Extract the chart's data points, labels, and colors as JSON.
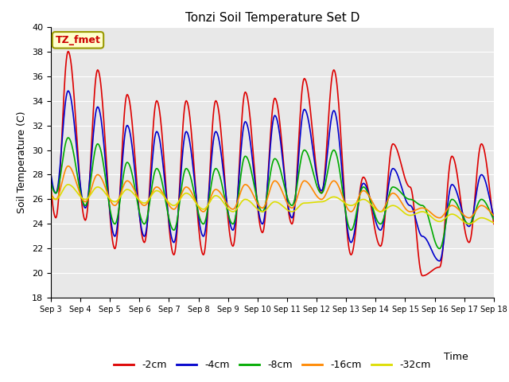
{
  "title": "Tonzi Soil Temperature Set D",
  "xlabel": "Time",
  "ylabel": "Soil Temperature (C)",
  "ylim": [
    18,
    40
  ],
  "annotation_label": "TZ_fmet",
  "background_color": "#e8e8e8",
  "legend_labels": [
    "-2cm",
    "-4cm",
    "-8cm",
    "-16cm",
    "-32cm"
  ],
  "line_colors": [
    "#dd0000",
    "#0000cc",
    "#00aa00",
    "#ff8800",
    "#dddd00"
  ],
  "line_widths": [
    1.2,
    1.2,
    1.2,
    1.2,
    1.2
  ],
  "x_tick_labels": [
    "Sep 3",
    "Sep 4",
    "Sep 5",
    "Sep 6",
    "Sep 7",
    "Sep 8",
    "Sep 9",
    "Sep 10",
    "Sep 11",
    "Sep 12",
    "Sep 13",
    "Sep 14",
    "Sep 15",
    "Sep 16",
    "Sep 17",
    "Sep 18"
  ],
  "days": 15,
  "series": {
    "d2cm": {
      "peaks": [
        38.0,
        36.5,
        34.5,
        34.0,
        34.0,
        34.0,
        34.7,
        34.2,
        35.8,
        36.5,
        27.8,
        30.5,
        19.8,
        29.5,
        30.5
      ],
      "troughs": [
        24.5,
        24.3,
        22.0,
        22.5,
        21.5,
        21.5,
        22.2,
        23.3,
        24.0,
        26.5,
        21.5,
        22.2,
        27.0,
        20.5,
        22.5
      ]
    },
    "d4cm": {
      "peaks": [
        34.8,
        33.5,
        32.0,
        31.5,
        31.5,
        31.5,
        32.3,
        32.8,
        33.3,
        33.2,
        27.3,
        28.5,
        23.0,
        27.2,
        28.0
      ],
      "troughs": [
        26.5,
        25.3,
        23.0,
        23.0,
        22.5,
        23.0,
        23.5,
        24.0,
        24.5,
        26.7,
        22.5,
        23.5,
        25.5,
        21.0,
        23.8
      ]
    },
    "d8cm": {
      "peaks": [
        31.0,
        30.5,
        29.0,
        28.5,
        28.5,
        28.5,
        29.5,
        29.3,
        30.0,
        30.0,
        27.0,
        27.0,
        25.5,
        26.0,
        26.0
      ],
      "troughs": [
        26.5,
        25.5,
        24.0,
        24.0,
        23.5,
        24.0,
        24.0,
        25.0,
        25.5,
        26.5,
        23.5,
        24.0,
        26.0,
        22.0,
        24.0
      ]
    },
    "d16cm": {
      "peaks": [
        28.7,
        28.0,
        27.5,
        27.0,
        27.0,
        26.8,
        27.2,
        27.5,
        27.5,
        27.5,
        26.7,
        26.5,
        25.3,
        25.5,
        25.5
      ],
      "troughs": [
        26.0,
        25.8,
        25.5,
        25.5,
        25.2,
        25.0,
        25.2,
        25.3,
        25.3,
        26.0,
        25.0,
        25.0,
        25.0,
        24.5,
        24.5
      ]
    },
    "d32cm": {
      "peaks": [
        27.2,
        27.0,
        26.8,
        26.7,
        26.5,
        26.3,
        26.0,
        25.8,
        25.7,
        26.2,
        26.0,
        25.5,
        25.0,
        24.8,
        24.5
      ],
      "troughs": [
        26.0,
        26.0,
        25.8,
        25.7,
        25.5,
        25.2,
        25.0,
        25.0,
        25.0,
        25.8,
        25.5,
        25.0,
        24.7,
        24.2,
        24.0
      ]
    }
  }
}
